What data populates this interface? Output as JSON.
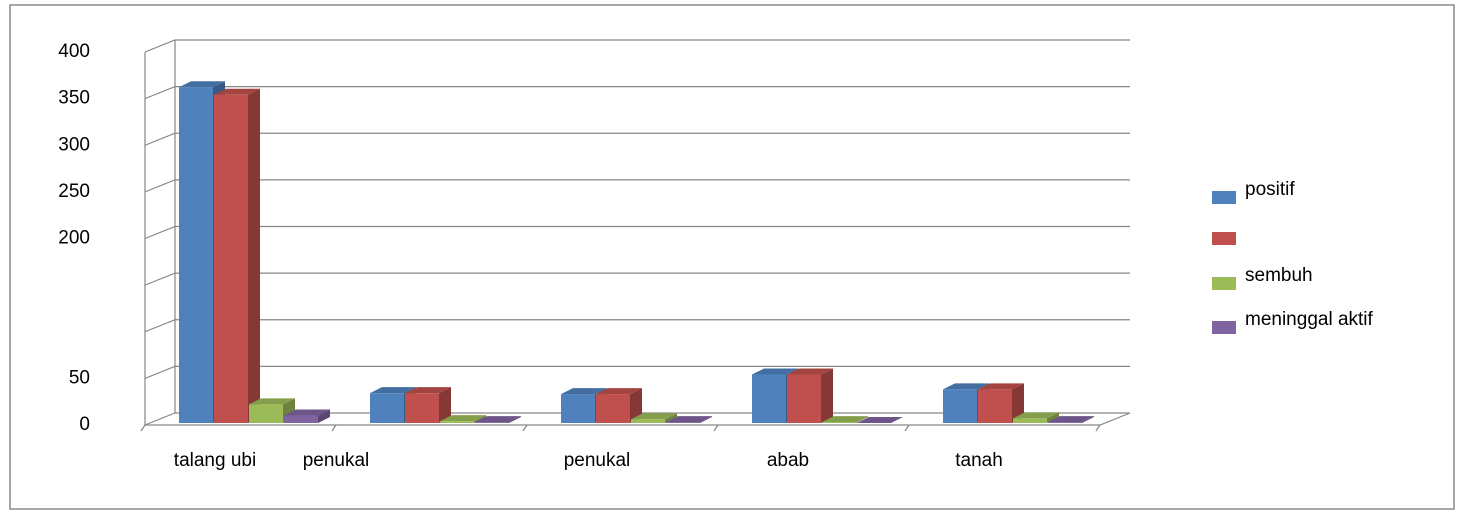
{
  "chart_data": {
    "type": "bar3d",
    "categories": [
      "talang ubi",
      "penukal",
      "penukal",
      "abab",
      "tanah"
    ],
    "series": [
      {
        "name": "positif",
        "color": "#4f81bd",
        "values": [
          360,
          32,
          31,
          52,
          36
        ]
      },
      {
        "name": null,
        "color": "#c0504d",
        "values": [
          352,
          32,
          31,
          52,
          36
        ]
      },
      {
        "name": "sembuh",
        "color": "#9bbb59",
        "values": [
          20,
          2,
          4,
          1,
          5
        ]
      },
      {
        "name": "meninggal aktif",
        "color": "#8064a2",
        "values": [
          8,
          1,
          1,
          0,
          1
        ]
      }
    ],
    "ylim": [
      0,
      400
    ],
    "yticks": [
      0,
      50,
      {
        "value": 100,
        "label": null
      },
      {
        "value": 150,
        "label": null
      },
      200,
      250,
      300,
      350,
      400
    ],
    "grid": true,
    "legend": "right"
  }
}
